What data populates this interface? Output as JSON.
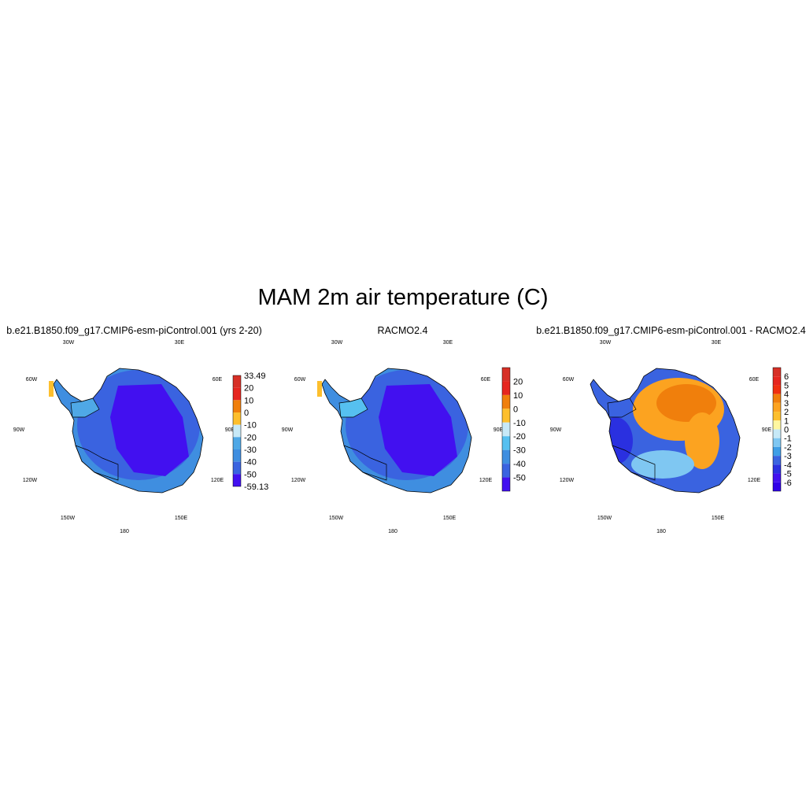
{
  "figure": {
    "title": "MAM 2m air temperature (C)"
  },
  "lon_labels": {
    "w30": "30W",
    "e30": "30E",
    "w60": "60W",
    "e60": "60E",
    "w90": "90W",
    "e90": "90E",
    "w120": "120W",
    "e120": "120E",
    "w150": "150W",
    "e150": "150E",
    "s180": "180"
  },
  "panels": [
    {
      "title": "b.e21.B1850.f09_g17.CMIP6-esm-piControl.001 (yrs 2-20)",
      "colorbar": {
        "labels": [
          "33.49",
          "20",
          "10",
          "0",
          "-10",
          "-20",
          "-30",
          "-40",
          "-50",
          "-59.13"
        ],
        "colors": [
          "#d73027",
          "#e6261f",
          "#f07f0c",
          "#fdbf2d",
          "#c7e9f7",
          "#4fa8e6",
          "#3f8ee0",
          "#3a63e0",
          "#4210f0"
        ]
      },
      "chart_data": {
        "type": "heatmap",
        "variable": "2m air temperature",
        "units": "C",
        "season": "MAM",
        "min": -59.13,
        "max": 33.49,
        "levels": [
          20,
          10,
          0,
          -10,
          -20,
          -30,
          -40,
          -50
        ]
      }
    },
    {
      "title": "RACMO2.4",
      "colorbar": {
        "labels": [
          "20",
          "10",
          "0",
          "-10",
          "-20",
          "-30",
          "-40",
          "-50"
        ],
        "colors": [
          "#d73027",
          "#e6261f",
          "#f07f0c",
          "#fdbf2d",
          "#c7e9f7",
          "#56c0f0",
          "#3f8ee0",
          "#3a63e0",
          "#4210f0"
        ]
      },
      "chart_data": {
        "type": "heatmap",
        "variable": "2m air temperature",
        "units": "C",
        "season": "MAM",
        "levels": [
          20,
          10,
          0,
          -10,
          -20,
          -30,
          -40,
          -50
        ]
      }
    },
    {
      "title": "b.e21.B1850.f09_g17.CMIP6-esm-piControl.001 - RACMO2.4",
      "colorbar": {
        "labels": [
          "6",
          "5",
          "4",
          "3",
          "2",
          "1",
          "0",
          "-1",
          "-2",
          "-3",
          "-4",
          "-5",
          "-6"
        ],
        "colors": [
          "#d73027",
          "#e6261f",
          "#f03010",
          "#f07f0c",
          "#fca320",
          "#fdbf2d",
          "#fff7a0",
          "#c7e9f7",
          "#7fc7f2",
          "#3f9ee6",
          "#3a63e0",
          "#2a30e0",
          "#4210f0",
          "#3000e8"
        ]
      },
      "chart_data": {
        "type": "heatmap",
        "variable": "2m air temperature difference",
        "units": "C",
        "season": "MAM",
        "levels": [
          6,
          5,
          4,
          3,
          2,
          1,
          0,
          -1,
          -2,
          -3,
          -4,
          -5,
          -6
        ]
      }
    }
  ]
}
